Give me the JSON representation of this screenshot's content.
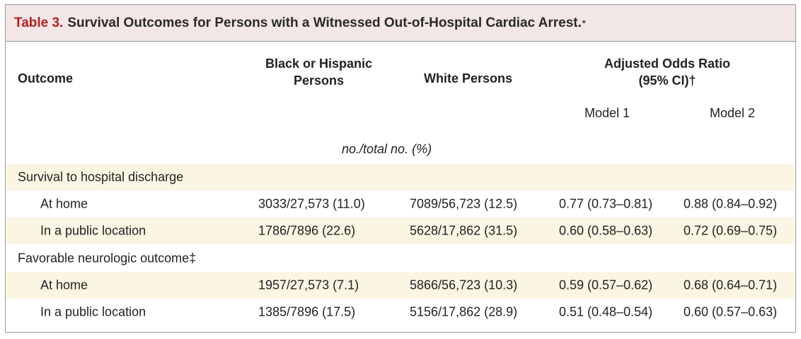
{
  "table": {
    "number": "Table 3.",
    "title": "Survival Outcomes for Persons with a Witnessed Out-of-Hospital Cardiac Arrest.",
    "title_mark": "*",
    "headers": {
      "outcome": "Outcome",
      "group_a_line1": "Black or Hispanic",
      "group_a_line2": "Persons",
      "group_b": "White Persons",
      "aor_line1": "Adjusted Odds Ratio",
      "aor_line2": "(95% CI)",
      "aor_mark": "†",
      "model1": "Model 1",
      "model2": "Model 2",
      "units": "no./total no. (%)"
    },
    "sections": [
      {
        "label": "Survival to hospital discharge",
        "rows": [
          {
            "label": "At home",
            "a": "3033/27,573 (11.0)",
            "b": "7089/56,723 (12.5)",
            "m1": "0.77 (0.73–0.81)",
            "m2": "0.88 (0.84–0.92)"
          },
          {
            "label": "In a public location",
            "a": "1786/7896 (22.6)",
            "b": "5628/17,862 (31.5)",
            "m1": "0.60 (0.58–0.63)",
            "m2": "0.72 (0.69–0.75)"
          }
        ]
      },
      {
        "label": "Favorable neurologic outcome‡",
        "rows": [
          {
            "label": "At home",
            "a": "1957/27,573 (7.1)",
            "b": "5866/56,723 (10.3)",
            "m1": "0.59 (0.57–0.62)",
            "m2": "0.68 (0.64–0.71)"
          },
          {
            "label": "In a public location",
            "a": "1385/7896 (17.5)",
            "b": "5156/17,862 (28.9)",
            "m1": "0.51 (0.48–0.54)",
            "m2": "0.60 (0.57–0.63)"
          }
        ]
      }
    ]
  }
}
